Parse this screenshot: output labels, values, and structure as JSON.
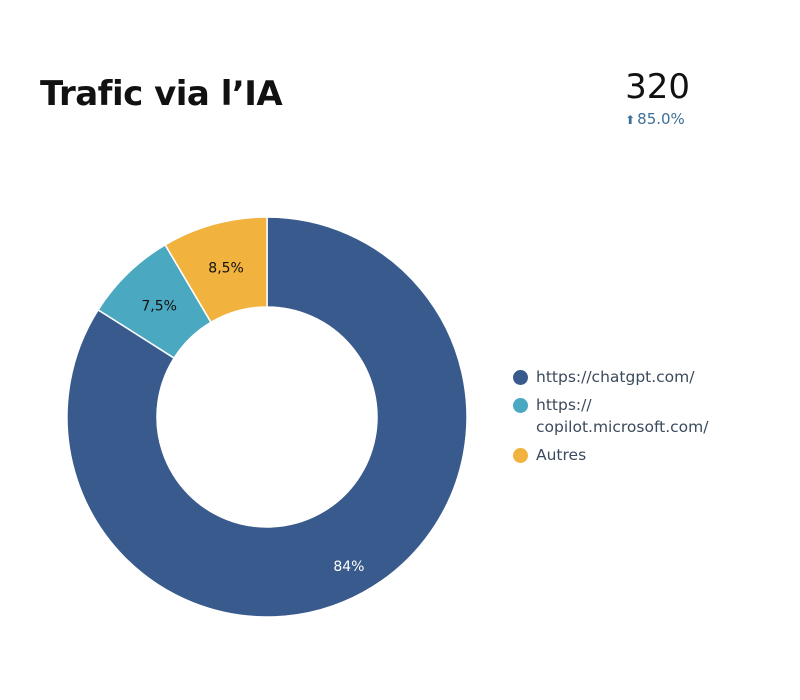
{
  "header": {
    "title": "Trafic via l’IA",
    "kpi_value": "320",
    "kpi_change": "85.0%",
    "kpi_arrow_icon": "arrow-up-icon"
  },
  "colors": {
    "chatgpt": "#395a8c",
    "copilot": "#4aa8c0",
    "autres": "#f2b23e"
  },
  "chart_data": {
    "type": "pie",
    "donut": true,
    "categories": [
      "https://chatgpt.com/",
      "https://\ncopilot.microsoft.com/",
      "Autres"
    ],
    "values": [
      84,
      7.5,
      8.5
    ],
    "data_labels": [
      "84%",
      "7,5%",
      "8,5%"
    ],
    "legend_placement": "right"
  }
}
